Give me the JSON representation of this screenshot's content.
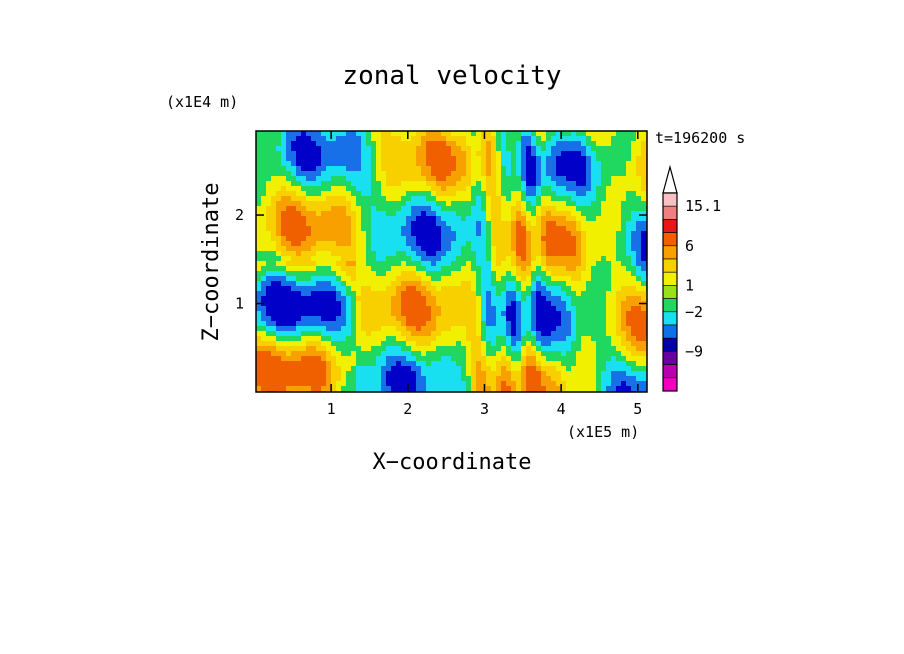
{
  "chart_data": {
    "type": "heatmap",
    "title": "zonal velocity",
    "xlabel": "X−coordinate",
    "ylabel": "Z−coordinate",
    "x_unit": "(x1E5 m)",
    "y_unit": "(x1E4 m)",
    "time_label": "t=196200 s",
    "xlim": [
      0.02,
      5.12
    ],
    "ylim": [
      0.0,
      2.95
    ],
    "x_ticks": [
      "1",
      "2",
      "3",
      "4",
      "5"
    ],
    "y_ticks": [
      "1",
      "2"
    ],
    "x_tick_values": [
      1,
      2,
      3,
      4,
      5
    ],
    "y_tick_values": [
      1,
      2
    ],
    "colorbar": {
      "labels": [
        "15.1",
        "6",
        "1",
        "−2",
        "−9"
      ],
      "label_values": [
        15.1,
        6,
        1,
        -2,
        -9
      ],
      "extend": "max",
      "bins": [
        {
          "color": "#f8c0c0"
        },
        {
          "color": "#f08080"
        },
        {
          "color": "#e81818"
        },
        {
          "color": "#f06000"
        },
        {
          "color": "#f8a000"
        },
        {
          "color": "#f8d000"
        },
        {
          "color": "#f0f000"
        },
        {
          "color": "#98e018"
        },
        {
          "color": "#20d860"
        },
        {
          "color": "#18e0f0"
        },
        {
          "color": "#1070e8"
        },
        {
          "color": "#0000a8"
        },
        {
          "color": "#6800a0"
        },
        {
          "color": "#b800b0"
        },
        {
          "color": "#f000c0"
        }
      ]
    },
    "field_palette": [
      "#0000c8",
      "#1870e8",
      "#18e0f0",
      "#20d860",
      "#f0f000",
      "#f8d000",
      "#f8a000",
      "#f06000"
    ]
  }
}
